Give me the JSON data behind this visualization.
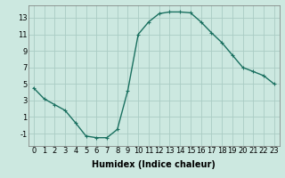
{
  "x": [
    0,
    1,
    2,
    3,
    4,
    5,
    6,
    7,
    8,
    9,
    10,
    11,
    12,
    13,
    14,
    15,
    16,
    17,
    18,
    19,
    20,
    21,
    22,
    23
  ],
  "y": [
    4.5,
    3.2,
    2.5,
    1.8,
    0.3,
    -1.3,
    -1.5,
    -1.5,
    -0.5,
    4.2,
    11.0,
    12.5,
    13.5,
    13.7,
    13.7,
    13.6,
    12.5,
    11.2,
    10.0,
    8.5,
    7.0,
    6.5,
    6.0,
    5.0
  ],
  "line_color": "#1a7060",
  "marker": "+",
  "marker_size": 3,
  "bg_color": "#cce8e0",
  "grid_color": "#aaccc4",
  "xlabel": "Humidex (Indice chaleur)",
  "xlim": [
    -0.5,
    23.5
  ],
  "ylim": [
    -2.5,
    14.5
  ],
  "xticks": [
    0,
    1,
    2,
    3,
    4,
    5,
    6,
    7,
    8,
    9,
    10,
    11,
    12,
    13,
    14,
    15,
    16,
    17,
    18,
    19,
    20,
    21,
    22,
    23
  ],
  "yticks": [
    -1,
    1,
    3,
    5,
    7,
    9,
    11,
    13
  ],
  "tick_fontsize": 6,
  "xlabel_fontsize": 7,
  "line_width": 1.0
}
